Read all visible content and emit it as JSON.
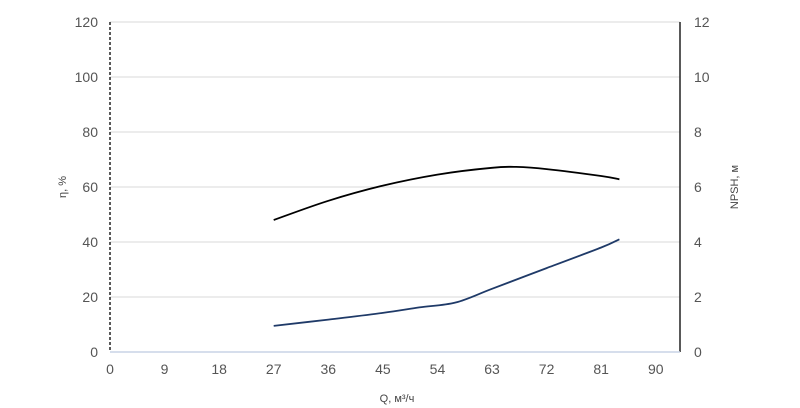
{
  "chart_data": {
    "type": "line",
    "xlabel": "Q, м³/ч",
    "ylabel_left": "η, %",
    "ylabel_right": "NPSH, м",
    "xlim": [
      0,
      94
    ],
    "ylim_left": [
      0,
      120
    ],
    "ylim_right": [
      0,
      12
    ],
    "x_ticks": [
      "0",
      "9",
      "18",
      "27",
      "36",
      "45",
      "54",
      "63",
      "72",
      "81",
      "90"
    ],
    "y_ticks_left": [
      "0",
      "20",
      "40",
      "60",
      "80",
      "100",
      "120"
    ],
    "y_ticks_right": [
      "0",
      "2",
      "4",
      "6",
      "8",
      "10",
      "12"
    ],
    "grid": true,
    "series": [
      {
        "axis": "left",
        "color": "#000000",
        "x": [
          27,
          36,
          45,
          54,
          63,
          67,
          72,
          81,
          84
        ],
        "y": [
          48,
          55,
          60.5,
          64.5,
          67,
          67.3,
          66.5,
          64,
          62.8
        ]
      },
      {
        "axis": "right",
        "color": "#1f3a68",
        "x": [
          27,
          36,
          45,
          51,
          57,
          63,
          72,
          81,
          84
        ],
        "y": [
          0.95,
          1.18,
          1.42,
          1.62,
          1.8,
          2.3,
          3.05,
          3.8,
          4.1
        ]
      }
    ]
  }
}
